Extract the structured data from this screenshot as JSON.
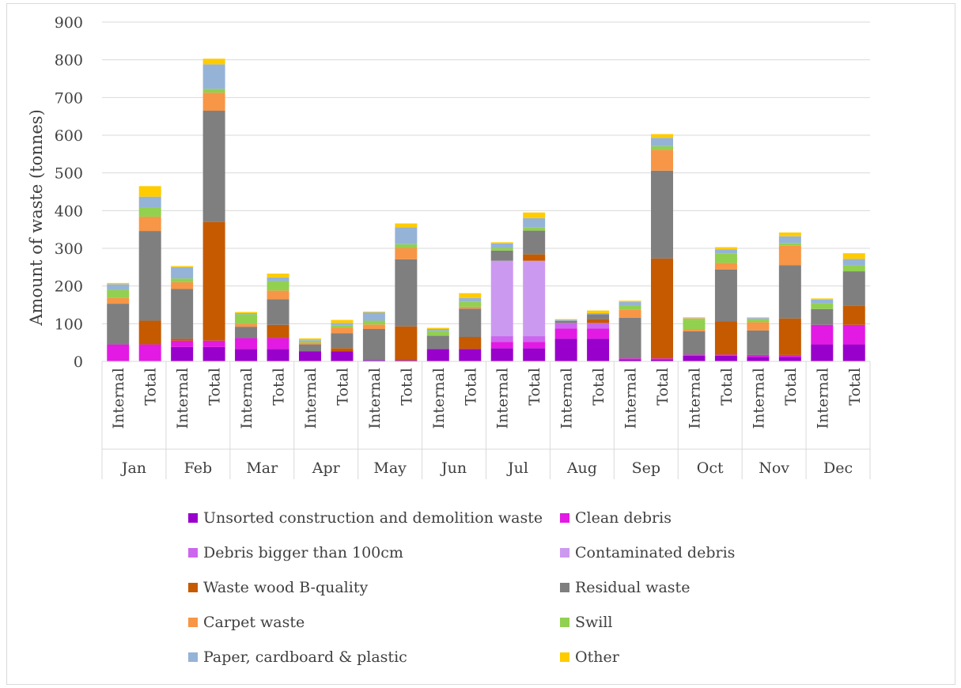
{
  "chart_data": {
    "type": "bar",
    "stacked": true,
    "ylabel": "Amount of waste (tonnes)",
    "ylim": [
      0,
      900
    ],
    "yticks": [
      0,
      100,
      200,
      300,
      400,
      500,
      600,
      700,
      800,
      900
    ],
    "grid": true,
    "legend_position": "bottom",
    "months": [
      "Jan",
      "Feb",
      "Mar",
      "Apr",
      "May",
      "Jun",
      "Jul",
      "Aug",
      "Sep",
      "Oct",
      "Nov",
      "Dec"
    ],
    "bar_labels": [
      "Internal",
      "Total"
    ],
    "categories": [
      "Jan Internal",
      "Jan Total",
      "Feb Internal",
      "Feb Total",
      "Mar Internal",
      "Mar Total",
      "Apr Internal",
      "Apr Total",
      "May Internal",
      "May Total",
      "Jun Internal",
      "Jun Total",
      "Jul Internal",
      "Jul Total",
      "Aug Internal",
      "Aug Total",
      "Sep Internal",
      "Sep Total",
      "Oct Internal",
      "Oct Total",
      "Nov Internal",
      "Nov Total",
      "Dec Internal",
      "Dec Total"
    ],
    "series": [
      {
        "name": "Unsorted construction and demolition waste",
        "color": "#9900cc",
        "values": [
          0,
          0,
          38,
          38,
          33,
          33,
          27,
          27,
          3,
          3,
          33,
          33,
          35,
          35,
          60,
          60,
          5,
          5,
          15,
          15,
          12,
          12,
          45,
          45
        ]
      },
      {
        "name": "Clean debris",
        "color": "#e31ae3",
        "values": [
          45,
          45,
          17,
          17,
          29,
          29,
          0,
          0,
          0,
          0,
          0,
          0,
          17,
          17,
          27,
          27,
          3,
          3,
          3,
          3,
          5,
          5,
          52,
          52
        ]
      },
      {
        "name": "Debris bigger than 100cm",
        "color": "#cc66ee",
        "values": [
          0,
          0,
          0,
          0,
          0,
          0,
          0,
          0,
          0,
          0,
          0,
          0,
          15,
          15,
          15,
          15,
          0,
          0,
          0,
          0,
          0,
          0,
          0,
          0
        ]
      },
      {
        "name": "Contaminated debris",
        "color": "#cc99f0",
        "values": [
          0,
          0,
          0,
          0,
          0,
          0,
          0,
          0,
          0,
          0,
          0,
          0,
          200,
          200,
          0,
          0,
          0,
          0,
          0,
          0,
          0,
          0,
          0,
          0
        ]
      },
      {
        "name": "Waste wood B-quality",
        "color": "#c55a00",
        "values": [
          0,
          63,
          5,
          315,
          0,
          35,
          0,
          8,
          0,
          90,
          0,
          32,
          0,
          17,
          0,
          10,
          0,
          265,
          0,
          88,
          0,
          97,
          0,
          50
        ]
      },
      {
        "name": "Residual waste",
        "color": "#7f7f7f",
        "values": [
          108,
          238,
          132,
          295,
          30,
          68,
          18,
          40,
          83,
          178,
          35,
          75,
          27,
          63,
          5,
          13,
          108,
          233,
          62,
          138,
          65,
          141,
          42,
          92
        ]
      },
      {
        "name": "Carpet waste",
        "color": "#f79646",
        "values": [
          15,
          38,
          18,
          48,
          8,
          23,
          5,
          15,
          12,
          30,
          0,
          5,
          0,
          0,
          0,
          0,
          22,
          55,
          5,
          17,
          22,
          52,
          0,
          0
        ]
      },
      {
        "name": "Swill",
        "color": "#92d050",
        "values": [
          22,
          25,
          10,
          10,
          25,
          25,
          5,
          5,
          10,
          10,
          13,
          13,
          7,
          9,
          0,
          0,
          10,
          10,
          26,
          26,
          7,
          7,
          15,
          15
        ]
      },
      {
        "name": "Paper, cardboard & plastic",
        "color": "#95b3d7",
        "values": [
          15,
          28,
          30,
          65,
          3,
          10,
          3,
          7,
          22,
          45,
          5,
          10,
          12,
          24,
          3,
          3,
          10,
          22,
          3,
          10,
          4,
          18,
          10,
          18
        ]
      },
      {
        "name": "Other",
        "color": "#ffcc00",
        "values": [
          3,
          28,
          3,
          15,
          3,
          10,
          3,
          8,
          2,
          10,
          3,
          13,
          3,
          15,
          2,
          7,
          3,
          10,
          3,
          6,
          2,
          10,
          3,
          15
        ]
      }
    ]
  }
}
